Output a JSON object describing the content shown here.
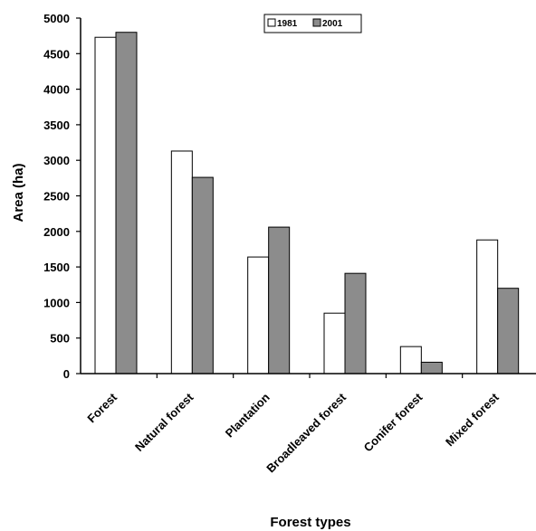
{
  "chart_data": {
    "type": "bar",
    "xlabel": "Forest types",
    "ylabel": "Area (ha)",
    "ylim": [
      0,
      5000
    ],
    "yticks": [
      0,
      500,
      1000,
      1500,
      2000,
      2500,
      3000,
      3500,
      4000,
      4500,
      5000
    ],
    "categories": [
      "Forest",
      "Natural forest",
      "Plantation",
      "Broadleaved forest",
      "Conifer forest",
      "Mixed forest"
    ],
    "series": [
      {
        "name": "1981",
        "color": "#ffffff",
        "values": [
          4730,
          3130,
          1640,
          850,
          380,
          1880
        ]
      },
      {
        "name": "2001",
        "color": "#8c8c8c",
        "values": [
          4800,
          2760,
          2060,
          1410,
          160,
          1200
        ]
      }
    ],
    "legend_position": "top-center",
    "grid": false
  }
}
